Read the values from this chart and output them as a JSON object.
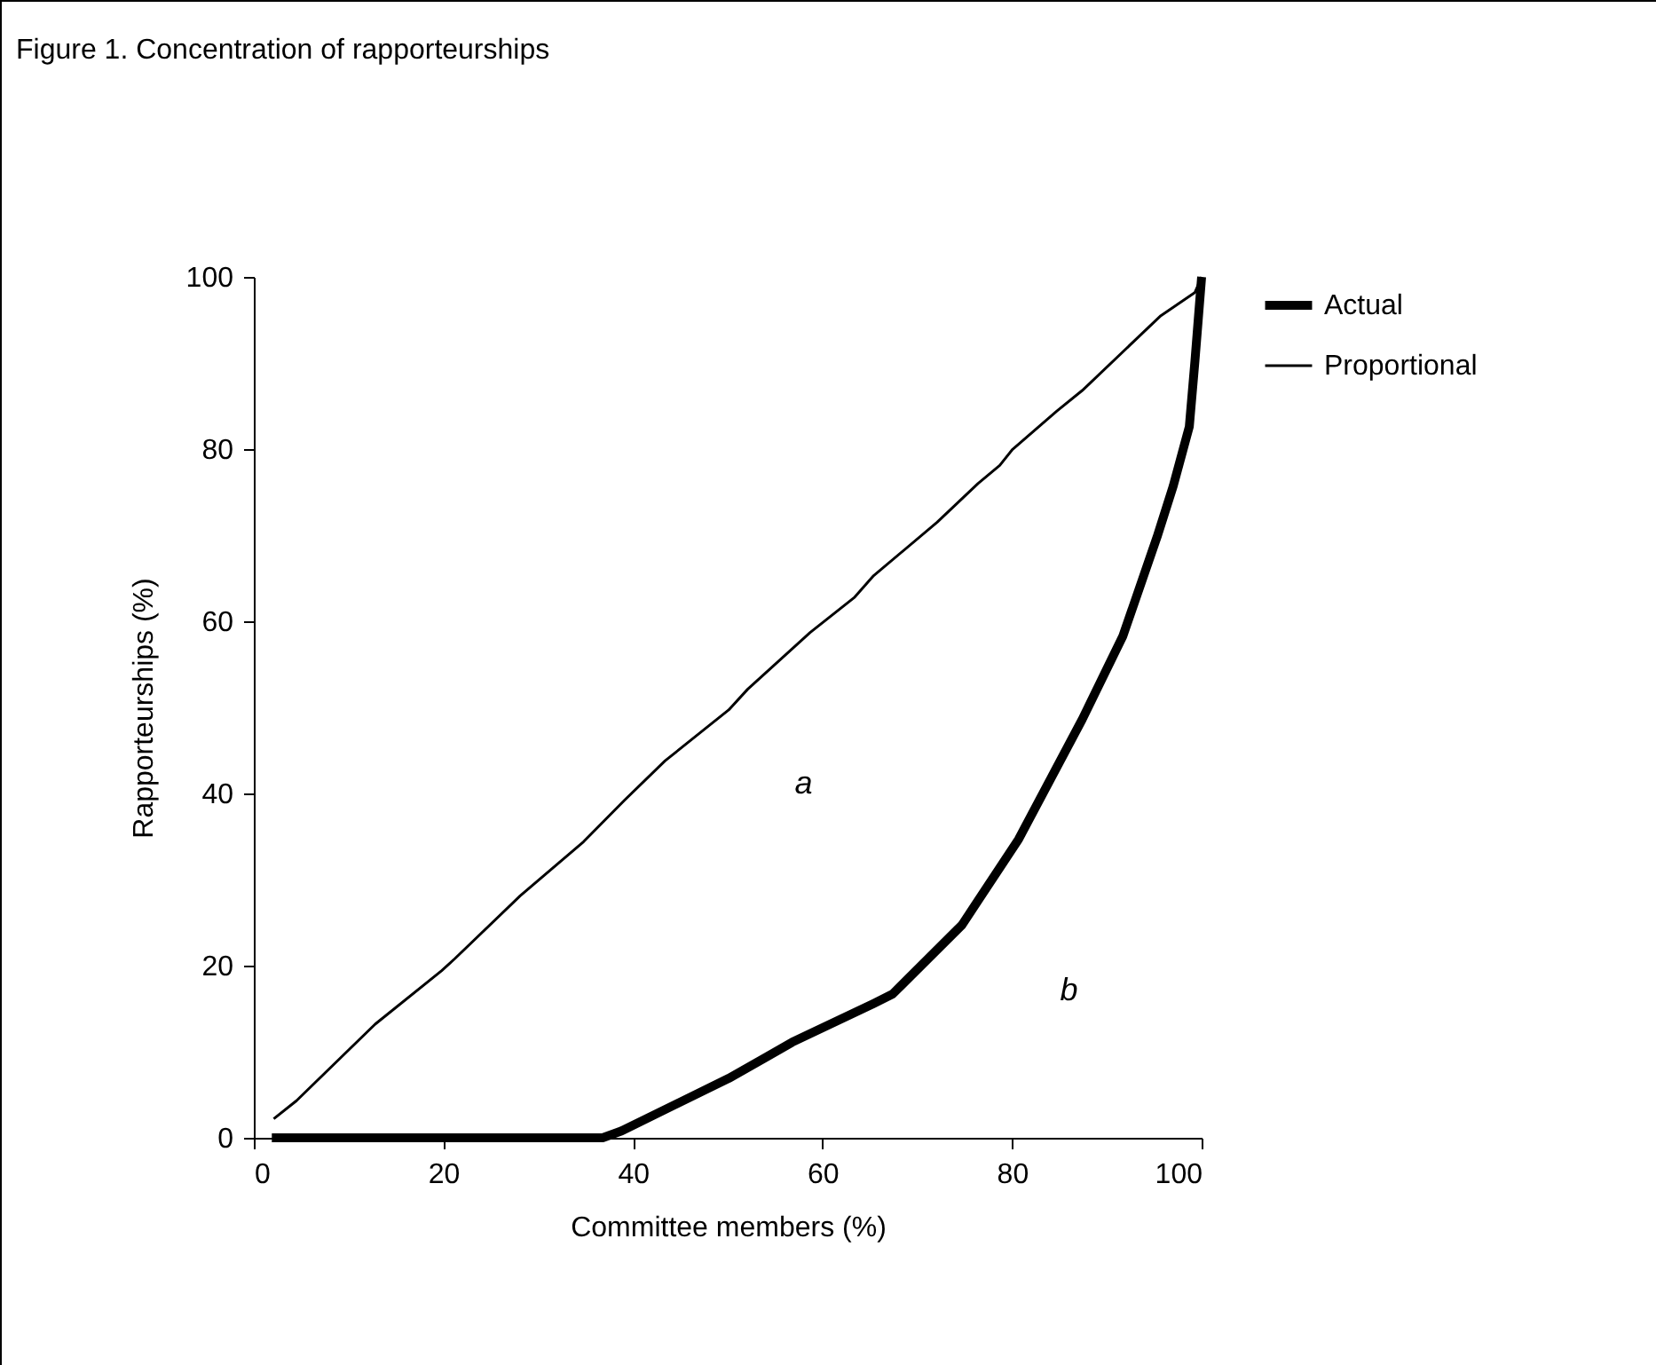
{
  "chart_data": {
    "type": "line",
    "title": "Figure 1. Concentration of rapporteurships",
    "xlabel": "Committee members (%)",
    "ylabel": "Rapporteurships (%)",
    "xlim": [
      0,
      100
    ],
    "ylim": [
      0,
      100
    ],
    "xticks": [
      0,
      20,
      40,
      60,
      80,
      100
    ],
    "yticks": [
      0,
      20,
      40,
      60,
      80,
      100
    ],
    "legend": "right",
    "grid": false,
    "marker": "none",
    "line_style": "solid",
    "annotations": [
      "a",
      "b"
    ],
    "series": [
      {
        "name": "Actual",
        "color": "#000000",
        "x": [
          1.9,
          36.8,
          38.8,
          50.1,
          54.1,
          56.8,
          65.4,
          67.4,
          74.7,
          80.7,
          87.4,
          91.7,
          95.3,
          97.0,
          98.7,
          99.3,
          100
        ],
        "values": [
          0,
          0,
          0.8,
          6.9,
          9.4,
          11.1,
          15.6,
          16.7,
          24.7,
          34.7,
          48.6,
          58.3,
          69.8,
          75.7,
          82.6,
          90.3,
          100
        ]
      },
      {
        "name": "Proportional",
        "color": "#000000",
        "x": [
          2.1,
          4.5,
          12.8,
          19.8,
          21.2,
          28.1,
          34.8,
          39.1,
          43.4,
          50.1,
          52.1,
          58.7,
          63.4,
          65.4,
          72.1,
          76.4,
          78.7,
          80.0,
          84.7,
          87.4,
          95.7,
          99.3,
          100
        ],
        "values": [
          2.2,
          4.3,
          13.2,
          19.4,
          20.8,
          28.1,
          34.4,
          39.2,
          43.8,
          49.7,
          52.1,
          58.7,
          62.8,
          65.3,
          71.5,
          76.0,
          78.1,
          79.9,
          84.4,
          86.8,
          95.5,
          98.2,
          100
        ]
      }
    ]
  }
}
